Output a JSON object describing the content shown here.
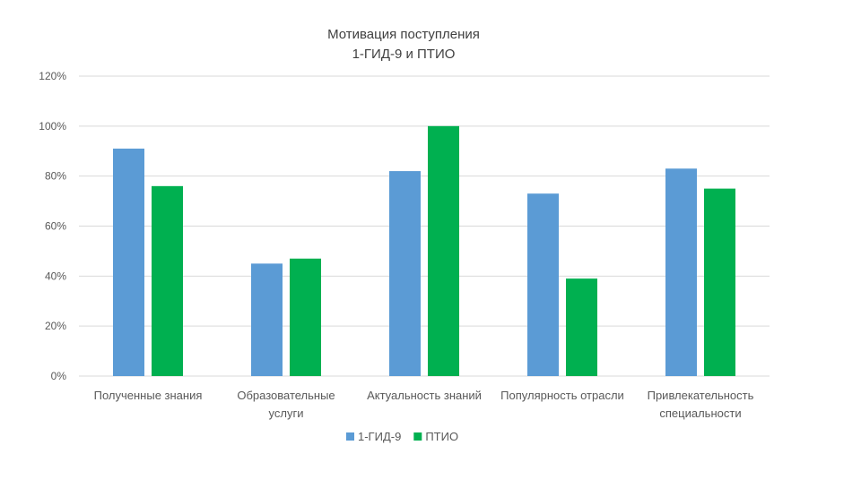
{
  "chart_data": {
    "type": "bar",
    "title": "Мотивация поступления",
    "subtitle": "1-ГИД-9 и ПТИО",
    "xlabel": "",
    "ylabel": "",
    "categories": [
      [
        "Полученные знания"
      ],
      [
        "Образовательные",
        "услуги"
      ],
      [
        "Актуальность знаний"
      ],
      [
        "Популярность отрасли"
      ],
      [
        "Привлекательность",
        "специальности"
      ]
    ],
    "series": [
      {
        "name": "1-ГИД-9",
        "color": "#5b9bd5",
        "values": [
          91,
          45,
          82,
          73,
          83
        ]
      },
      {
        "name": "ПТИО",
        "color": "#00b050",
        "values": [
          76,
          47,
          100,
          39,
          75
        ]
      }
    ],
    "ylim": [
      0,
      120
    ],
    "yticks": [
      0,
      20,
      40,
      60,
      80,
      100,
      120
    ],
    "ytick_suffix": "%",
    "grid": true,
    "legend": "bottom"
  }
}
